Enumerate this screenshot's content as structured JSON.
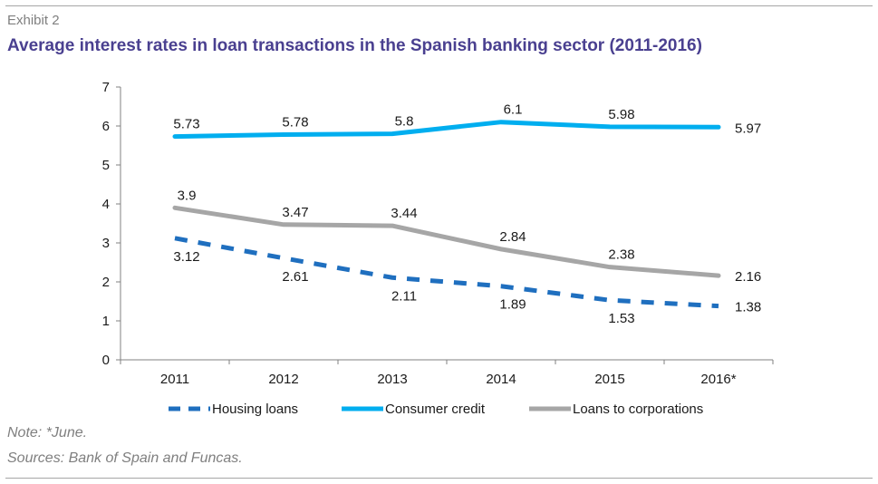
{
  "header": {
    "exhibit": "Exhibit 2",
    "title": "Average interest rates in loan transactions in the Spanish banking sector (2011-2016)"
  },
  "footer": {
    "note": "Note: *June.",
    "sources": "Sources: Bank of Spain and Funcas."
  },
  "chart_data": {
    "type": "line",
    "title": "Average interest rates in loan transactions in the Spanish banking sector (2011-2016)",
    "xlabel": "",
    "ylabel": "",
    "categories": [
      "2011",
      "2012",
      "2013",
      "2014",
      "2015",
      "2016*"
    ],
    "ylim": [
      0,
      7
    ],
    "yticks": [
      0,
      1,
      2,
      3,
      4,
      5,
      6,
      7
    ],
    "grid": false,
    "legend_position": "bottom",
    "series": [
      {
        "name": "Housing loans",
        "values": [
          3.12,
          2.61,
          2.11,
          1.89,
          1.53,
          1.38
        ],
        "labels": [
          "3.12",
          "2.61",
          "2.11",
          "1.89",
          "1.53",
          "1.38"
        ],
        "color": "#1f6fbf",
        "style": "dashed"
      },
      {
        "name": "Consumer credit",
        "values": [
          5.73,
          5.78,
          5.8,
          6.1,
          5.98,
          5.97
        ],
        "labels": [
          "5.73",
          "5.78",
          "5.8",
          "6.1",
          "5.98",
          "5.97"
        ],
        "color": "#00aeef",
        "style": "solid"
      },
      {
        "name": "Loans to corporations",
        "values": [
          3.9,
          3.47,
          3.44,
          2.84,
          2.38,
          2.16
        ],
        "labels": [
          "3.9",
          "3.47",
          "3.44",
          "2.84",
          "2.38",
          "2.16"
        ],
        "color": "#a6a6a6",
        "style": "solid"
      }
    ]
  }
}
